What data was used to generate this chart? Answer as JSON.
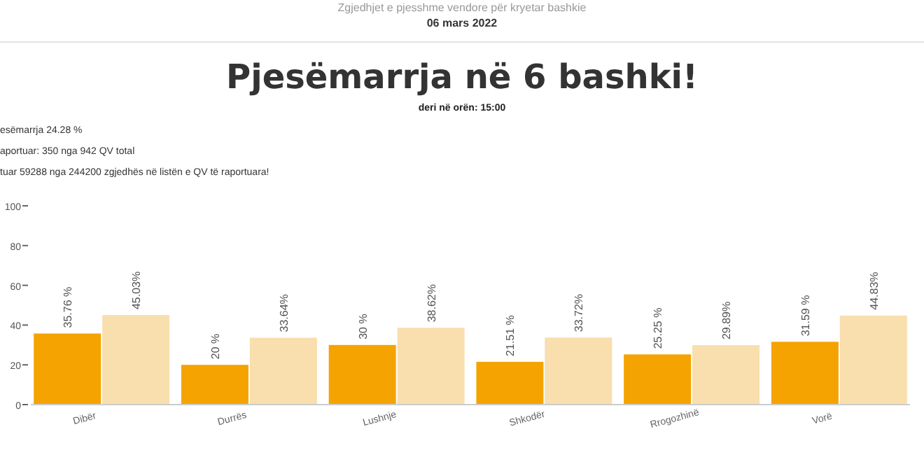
{
  "chart_data": {
    "type": "bar",
    "title": "Pjesëmarrja në 6 bashki!",
    "subtitle": "deri në orën: 15:00",
    "annotations": [
      "Zgjedhjet e pjesshme vendore për kryetar bashkie",
      "06 mars 2022",
      "esëmarrja 24.28 %",
      "aportuar: 350 nga 942 QV total",
      "tuar 59288 nga 244200 zgjedhës në listën e QV të raportuara!"
    ],
    "categories": [
      "Dibër",
      "Durrës",
      "Lushnje",
      "Shkodër",
      "Rrogozhinë",
      "Vorë"
    ],
    "series": [
      {
        "color": "#f5a300",
        "values": [
          35.76,
          20,
          30,
          21.51,
          25.25,
          31.59
        ],
        "value_labels": [
          "35.76 %",
          "20 %",
          "30 %",
          "21.51 %",
          "25.25 %",
          "31.59 %"
        ]
      },
      {
        "color": "#f9deae",
        "values": [
          45.03,
          33.64,
          38.62,
          33.72,
          29.89,
          44.83
        ],
        "value_labels": [
          "45.03%",
          "33.64%",
          "38.62%",
          "33.72%",
          "29.89%",
          "44.83%"
        ]
      }
    ],
    "ylim": [
      0,
      100
    ],
    "yticks": [
      0,
      20,
      40,
      60,
      80,
      100
    ],
    "grid": false
  }
}
